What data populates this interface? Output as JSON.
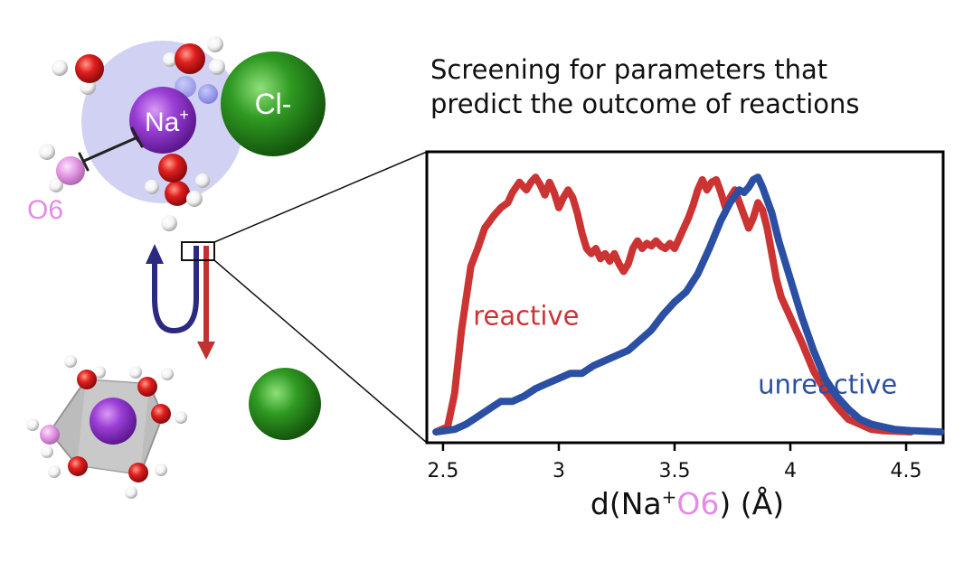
{
  "heading": {
    "line1": "Screening for parameters that",
    "line2": "predict the outcome of reactions"
  },
  "molecule_labels": {
    "sodium": "Na",
    "sodium_charge": "+",
    "chloride": "Cl-",
    "oxygen": "O6"
  },
  "colors": {
    "reactive": "#cc3333",
    "unreactive": "#2a4fa3",
    "sodium": "#8e33cc",
    "chloride": "#2e8b1e",
    "oxygen": "#d61c1c",
    "hydrogen": "#ffffff",
    "o6": "#e48be4",
    "solvation_shell": "#c9c9f2",
    "arrow_up": "#2b2a80",
    "arrow_down": "#c33030"
  },
  "chart_data": {
    "type": "line",
    "title": "",
    "xlabel_parts": {
      "prefix": "d(Na",
      "sup": "+",
      "atom": "O6",
      "suffix": ") (Å)"
    },
    "ylabel": "",
    "xlim": [
      2.43,
      4.66
    ],
    "ylim": [
      0,
      1.05
    ],
    "xticks": [
      "2.5",
      "3",
      "3.5",
      "4",
      "4.5"
    ],
    "xtick_values": [
      2.5,
      3.0,
      3.5,
      4.0,
      4.5
    ],
    "grid": false,
    "series": [
      {
        "key": "reactive",
        "name": "reactive",
        "x": [
          2.47,
          2.52,
          2.55,
          2.58,
          2.62,
          2.65,
          2.68,
          2.72,
          2.75,
          2.78,
          2.8,
          2.83,
          2.86,
          2.88,
          2.9,
          2.92,
          2.94,
          2.96,
          2.98,
          3.0,
          3.02,
          3.04,
          3.06,
          3.08,
          3.1,
          3.12,
          3.14,
          3.16,
          3.18,
          3.2,
          3.22,
          3.24,
          3.26,
          3.28,
          3.3,
          3.32,
          3.34,
          3.36,
          3.38,
          3.4,
          3.42,
          3.44,
          3.46,
          3.48,
          3.5,
          3.52,
          3.54,
          3.56,
          3.58,
          3.6,
          3.62,
          3.64,
          3.66,
          3.68,
          3.7,
          3.72,
          3.74,
          3.76,
          3.78,
          3.8,
          3.82,
          3.84,
          3.86,
          3.88,
          3.9,
          3.92,
          3.94,
          3.96,
          3.98,
          4.0,
          4.05,
          4.1,
          4.15,
          4.2,
          4.25,
          4.3,
          4.35,
          4.4,
          4.52
        ],
        "y": [
          0.0,
          0.02,
          0.15,
          0.4,
          0.65,
          0.72,
          0.8,
          0.85,
          0.88,
          0.9,
          0.94,
          0.98,
          0.95,
          0.98,
          1.0,
          0.97,
          0.93,
          0.98,
          0.94,
          0.88,
          0.92,
          0.95,
          0.92,
          0.86,
          0.78,
          0.72,
          0.7,
          0.72,
          0.68,
          0.7,
          0.67,
          0.7,
          0.66,
          0.63,
          0.66,
          0.72,
          0.75,
          0.72,
          0.74,
          0.73,
          0.75,
          0.73,
          0.72,
          0.74,
          0.72,
          0.76,
          0.8,
          0.84,
          0.89,
          0.95,
          0.99,
          0.95,
          0.98,
          0.99,
          0.94,
          0.88,
          0.92,
          0.95,
          0.9,
          0.85,
          0.8,
          0.84,
          0.9,
          0.87,
          0.8,
          0.7,
          0.6,
          0.53,
          0.49,
          0.45,
          0.35,
          0.24,
          0.16,
          0.1,
          0.05,
          0.03,
          0.01,
          0.005,
          0.0
        ]
      },
      {
        "key": "unreactive",
        "name": "unreactive",
        "x": [
          2.47,
          2.55,
          2.6,
          2.65,
          2.7,
          2.75,
          2.8,
          2.85,
          2.9,
          2.95,
          3.0,
          3.05,
          3.1,
          3.15,
          3.2,
          3.25,
          3.3,
          3.35,
          3.4,
          3.45,
          3.5,
          3.55,
          3.6,
          3.65,
          3.7,
          3.74,
          3.78,
          3.8,
          3.82,
          3.84,
          3.86,
          3.88,
          3.9,
          3.92,
          3.95,
          4.0,
          4.05,
          4.1,
          4.15,
          4.2,
          4.25,
          4.3,
          4.35,
          4.4,
          4.45,
          4.52,
          4.65
        ],
        "y": [
          0.0,
          0.01,
          0.03,
          0.06,
          0.09,
          0.12,
          0.12,
          0.14,
          0.17,
          0.19,
          0.21,
          0.23,
          0.23,
          0.26,
          0.28,
          0.3,
          0.32,
          0.36,
          0.4,
          0.46,
          0.51,
          0.55,
          0.62,
          0.72,
          0.83,
          0.9,
          0.95,
          0.94,
          0.96,
          0.99,
          1.0,
          0.96,
          0.91,
          0.86,
          0.75,
          0.6,
          0.45,
          0.32,
          0.21,
          0.14,
          0.09,
          0.05,
          0.03,
          0.02,
          0.01,
          0.005,
          0.0
        ]
      }
    ],
    "annotations": [
      {
        "text": "reactive",
        "series": "reactive",
        "x": 2.63,
        "y": 0.42
      },
      {
        "text": "unreactive",
        "series": "unreactive",
        "x": 3.86,
        "y": 0.15
      }
    ],
    "legend": "none"
  }
}
